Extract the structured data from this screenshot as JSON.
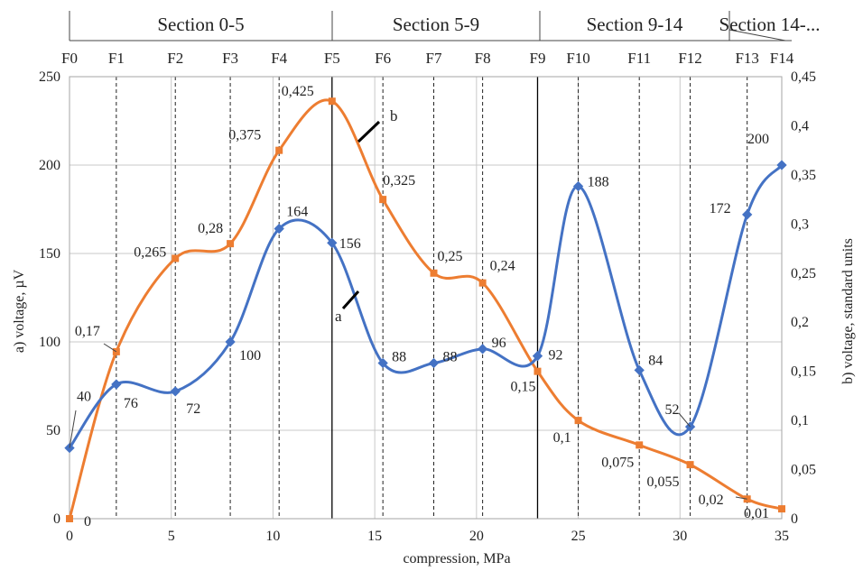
{
  "chart_data": {
    "type": "line",
    "sections": [
      "Section 0-5",
      "Section 5-9",
      "Section 9-14",
      "Section 14-..."
    ],
    "markers": [
      {
        "label": "F0",
        "x": 0
      },
      {
        "label": "F1",
        "x": 2.3
      },
      {
        "label": "F2",
        "x": 5.2
      },
      {
        "label": "F3",
        "x": 7.9
      },
      {
        "label": "F4",
        "x": 10.3
      },
      {
        "label": "F5",
        "x": 12.9
      },
      {
        "label": "F6",
        "x": 15.4
      },
      {
        "label": "F7",
        "x": 17.9
      },
      {
        "label": "F8",
        "x": 20.3
      },
      {
        "label": "F9",
        "x": 23.0
      },
      {
        "label": "F10",
        "x": 25.0
      },
      {
        "label": "F11",
        "x": 28.0
      },
      {
        "label": "F12",
        "x": 30.5
      },
      {
        "label": "F13",
        "x": 33.3
      },
      {
        "label": "F14",
        "x": 35.0
      }
    ],
    "xlabel": "compression, MPa",
    "ylabel": "a) voltage, µV",
    "y2label": "b) voltage, standard units",
    "xlim": [
      0,
      35
    ],
    "ylim": [
      0,
      250
    ],
    "y2lim": [
      0,
      0.45
    ],
    "xticks": [
      "0",
      "5",
      "10",
      "15",
      "20",
      "25",
      "30",
      "35"
    ],
    "yticks": [
      "0",
      "50",
      "100",
      "150",
      "200",
      "250"
    ],
    "y2ticks": [
      "0",
      "0,05",
      "0,1",
      "0,15",
      "0,2",
      "0,25",
      "0,3",
      "0,35",
      "0,4",
      "0,45"
    ],
    "series": [
      {
        "name": "a",
        "color": "#4472c4",
        "axis": "left",
        "x": [
          0,
          2.3,
          5.2,
          7.9,
          10.3,
          12.9,
          15.4,
          17.9,
          20.3,
          23.0,
          25.0,
          28.0,
          30.5,
          33.3,
          35.0
        ],
        "y": [
          40,
          76,
          72,
          100,
          164,
          156,
          88,
          88,
          96,
          92,
          188,
          84,
          52,
          172,
          200
        ],
        "labels": [
          "40",
          "76",
          "72",
          "100",
          "164",
          "156",
          "88",
          "88",
          "96",
          "92",
          "188",
          "84",
          "52",
          "172",
          "200"
        ]
      },
      {
        "name": "b",
        "color": "#ed7d31",
        "axis": "right",
        "x": [
          0,
          2.3,
          5.2,
          7.9,
          10.3,
          12.9,
          15.4,
          17.9,
          20.3,
          23.0,
          25.0,
          28.0,
          30.5,
          33.3,
          35.0
        ],
        "y": [
          0,
          0.17,
          0.265,
          0.28,
          0.375,
          0.425,
          0.325,
          0.25,
          0.24,
          0.15,
          0.1,
          0.075,
          0.055,
          0.02,
          0.01
        ],
        "labels": [
          "0",
          "0,17",
          "0,265",
          "0,28",
          "0,375",
          "0,425",
          "0,325",
          "0,25",
          "0,24",
          "0,15",
          "0,1",
          "0,075",
          "0,055",
          "0,02",
          "0,01"
        ]
      }
    ],
    "grid": true
  }
}
